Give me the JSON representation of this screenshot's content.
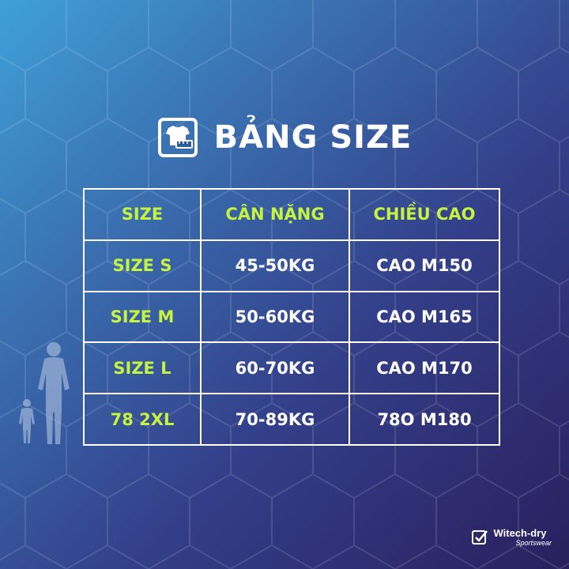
{
  "title": "BẢNG SIZE",
  "table": {
    "headers": [
      "SIZE",
      "CÂN NẶNG",
      "CHIỀU CAO"
    ],
    "rows": [
      {
        "size": "SIZE S",
        "weight": "45-50KG",
        "height": "CAO M150"
      },
      {
        "size": "SIZE M",
        "weight": "50-60KG",
        "height": "CAO M165"
      },
      {
        "size": "SIZE L",
        "weight": "60-70KG",
        "height": "CAO M170"
      },
      {
        "size": "78 2XL",
        "weight": "70-89KG",
        "height": "78O M180"
      }
    ]
  },
  "brand": {
    "name": "Witech-dry",
    "tagline": "Sportswear"
  },
  "colors": {
    "accent": "#c6f33d",
    "text": "#ffffff",
    "grid_line": "#ffffff"
  },
  "icons": {
    "title": "tshirt-measure-icon",
    "logo": "checkbox-icon",
    "people": "people-silhouette-icon"
  }
}
